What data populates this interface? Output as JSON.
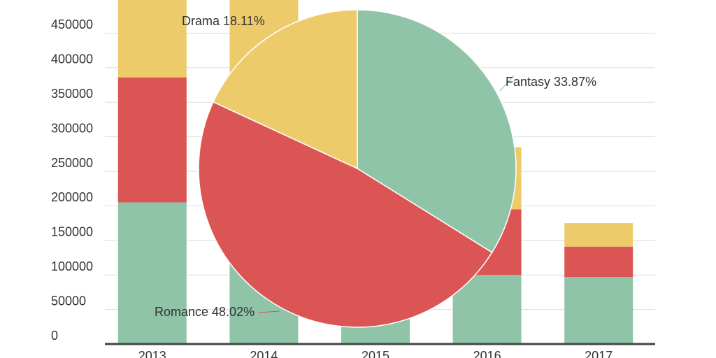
{
  "chart_data": [
    {
      "type": "bar",
      "stacked": true,
      "categories": [
        "2013",
        "2014",
        "2015",
        "2016",
        "2017"
      ],
      "series": [
        {
          "color": "#8fc4a8",
          "values": [
            205000,
            210000,
            150000,
            100000,
            97000
          ]
        },
        {
          "color": "#dc5555",
          "values": [
            181000,
            170000,
            110000,
            95000,
            44000
          ]
        },
        {
          "color": "#eecb6a",
          "values": [
            125000,
            130000,
            60000,
            90000,
            34000
          ]
        }
      ],
      "ylim": [
        0,
        500000
      ],
      "yticks": [
        0,
        50000,
        100000,
        150000,
        200000,
        250000,
        300000,
        350000,
        400000,
        450000
      ],
      "grid": true
    },
    {
      "type": "pie",
      "categories": [
        "Fantasy",
        "Romance",
        "Drama"
      ],
      "values": [
        33.87,
        48.02,
        18.11
      ],
      "value_labels": [
        "Fantasy 33.87%",
        "Romance 48.02%",
        "Drama 18.11%"
      ],
      "colors": [
        "#8fc4a8",
        "#dc5555",
        "#eecb6a"
      ]
    }
  ]
}
